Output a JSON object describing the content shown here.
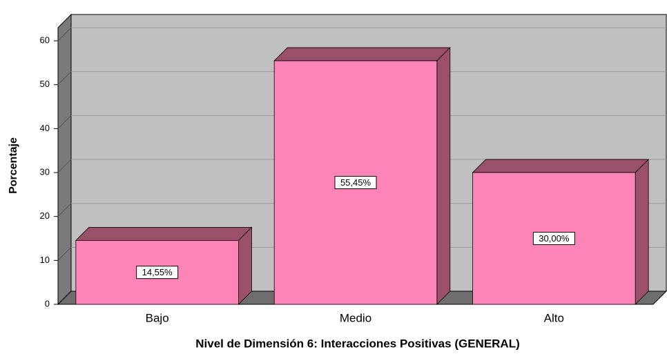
{
  "chart_data": {
    "type": "bar",
    "x_label": "Nivel de Dimensión 6: Interacciones Positivas (GENERAL)",
    "y_label": "Porcentaje",
    "categories": [
      "Bajo",
      "Medio",
      "Alto"
    ],
    "values": [
      14.55,
      55.45,
      30.0
    ],
    "value_labels": [
      "14,55%",
      "55,45%",
      "30,00%"
    ],
    "color": "#ff85b8",
    "ylim": [
      0,
      63
    ],
    "yticks": [
      0,
      10,
      20,
      30,
      40,
      50,
      60
    ],
    "grid": true
  }
}
